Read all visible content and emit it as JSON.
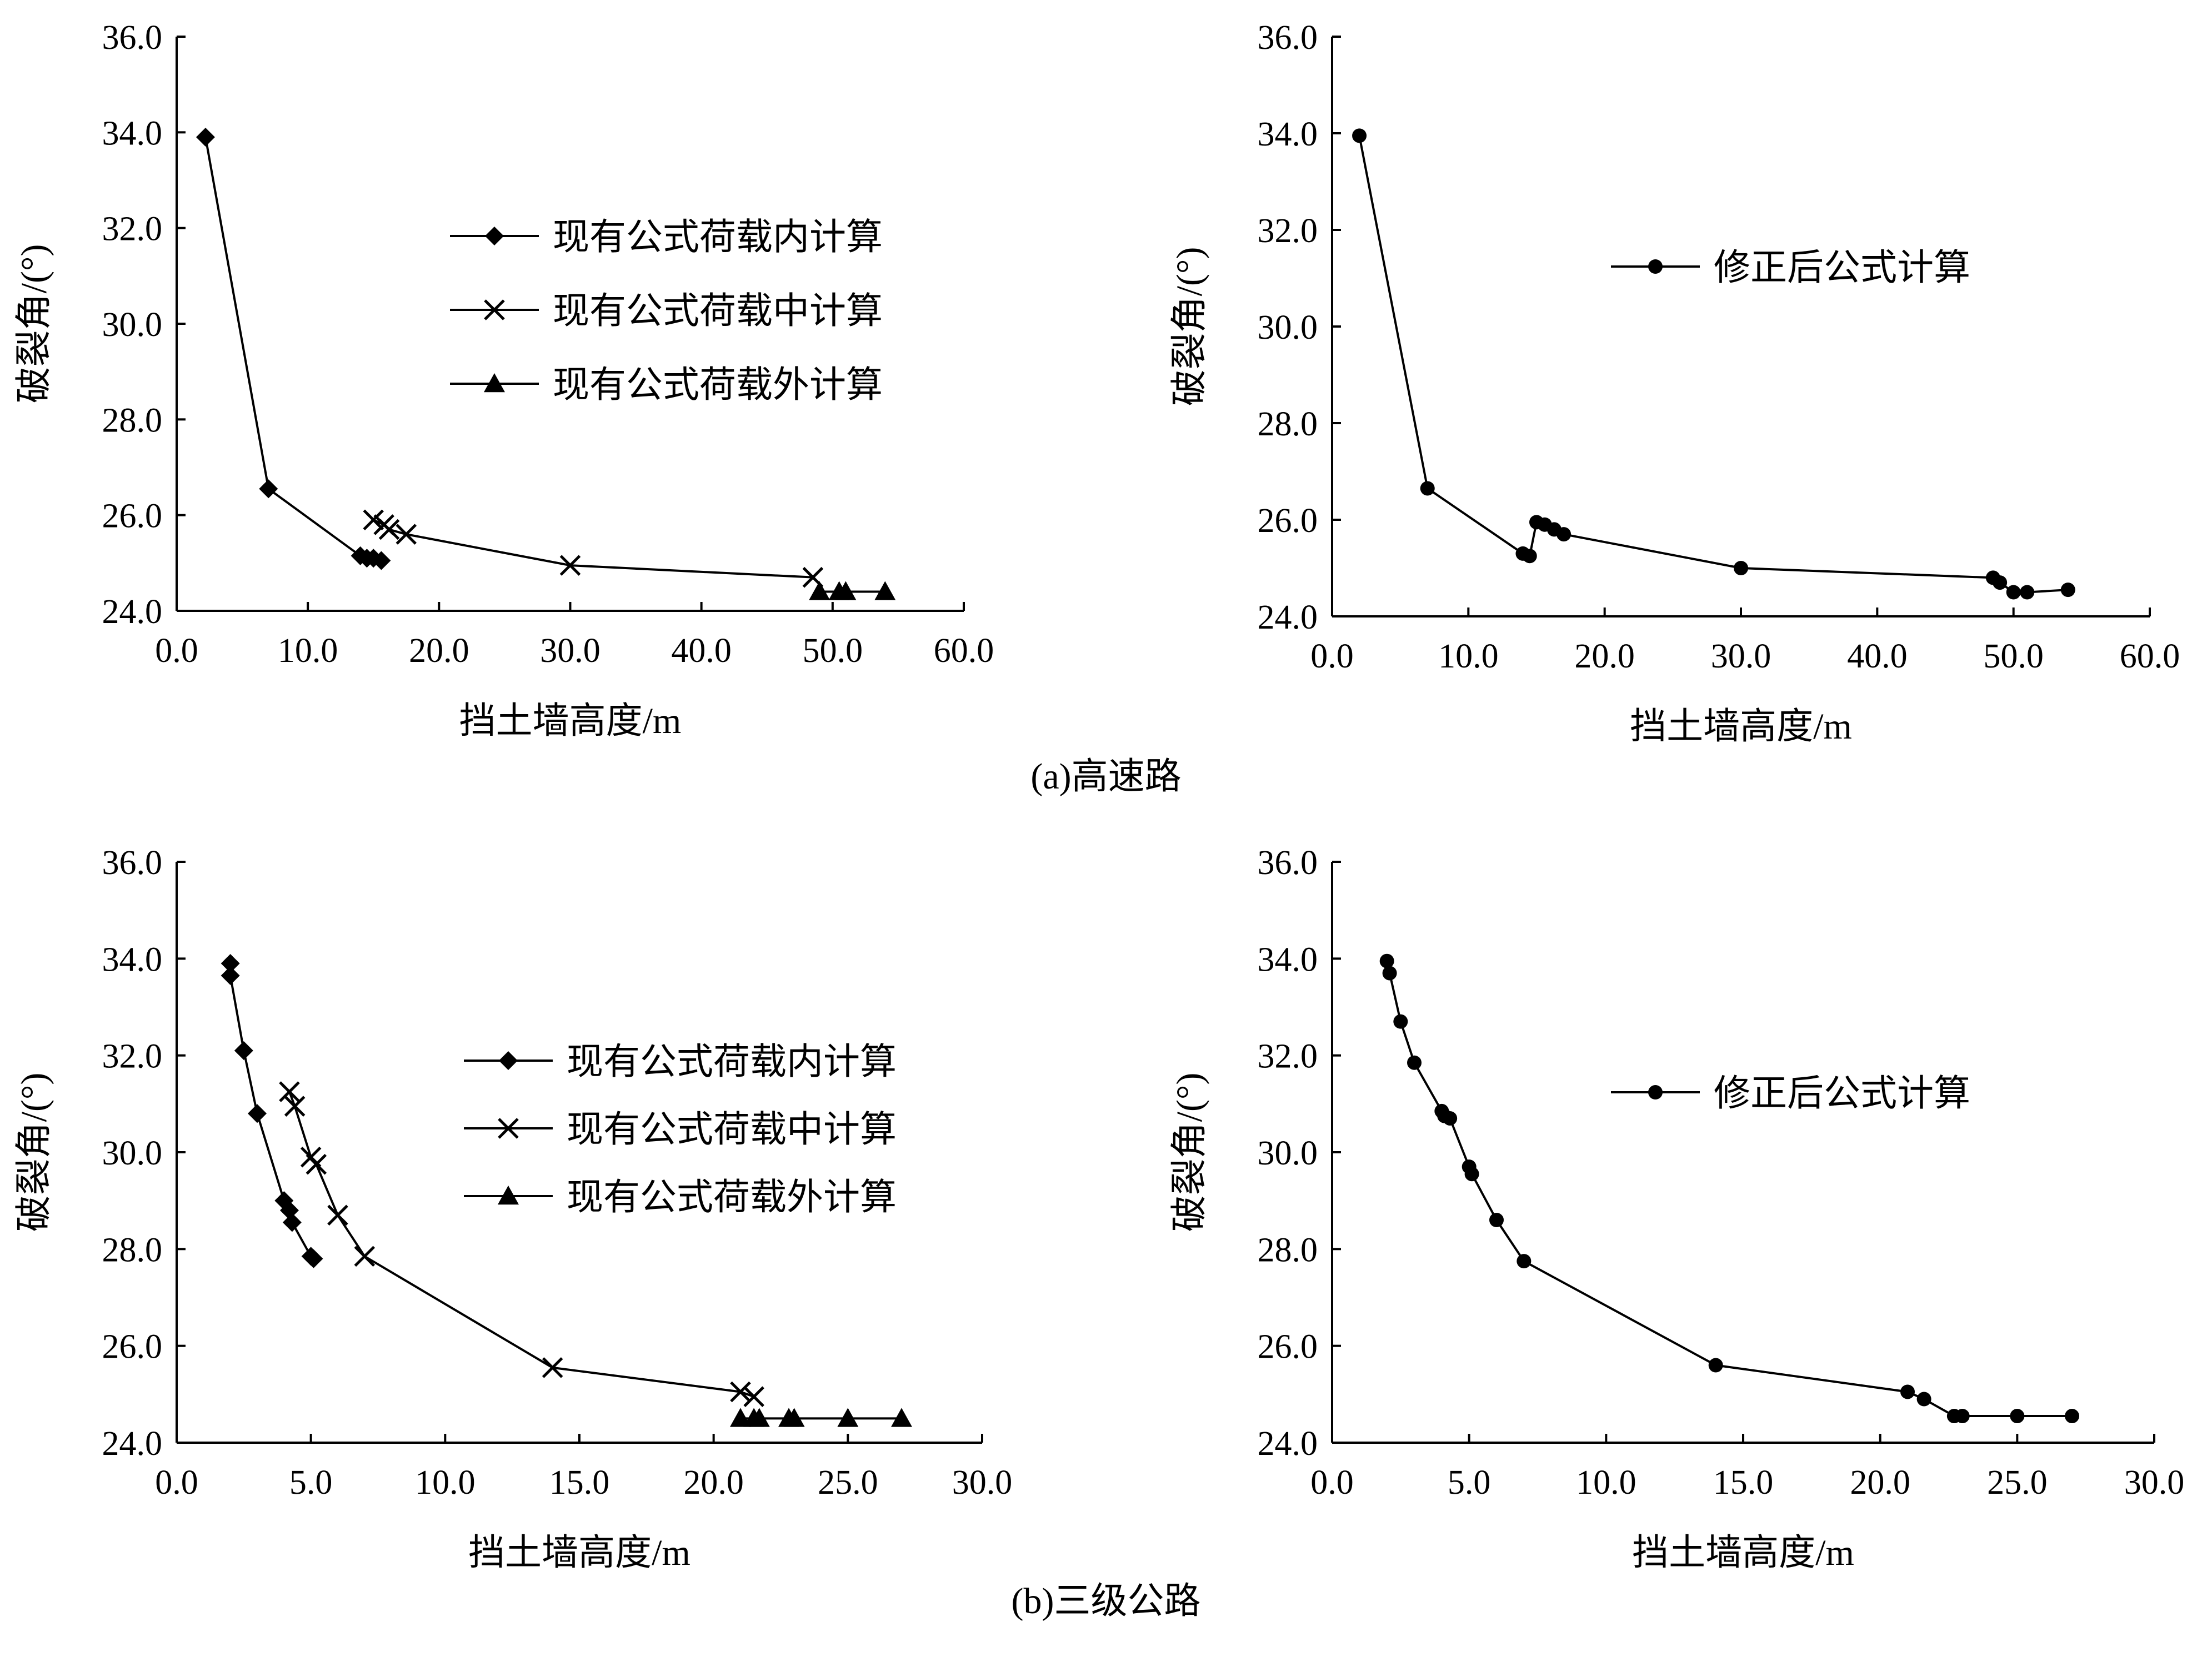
{
  "captions": {
    "top": "(a)高速路",
    "bottom": "(b)三级公路"
  },
  "style": {
    "line_color": "#000000",
    "background": "#ffffff"
  },
  "chart_data": [
    {
      "type": "line",
      "xlabel": "挡土墙高度/m",
      "ylabel": "破裂角/(°)",
      "xlim": [
        0,
        60
      ],
      "ylim": [
        24,
        36
      ],
      "xticks": [
        "0.0",
        "10.0",
        "20.0",
        "30.0",
        "40.0",
        "50.0",
        "60.0"
      ],
      "yticks": [
        "24.0",
        "26.0",
        "28.0",
        "30.0",
        "32.0",
        "34.0",
        "36.0"
      ],
      "legend_position": "upper-right",
      "series": [
        {
          "name": "现有公式荷载内计算",
          "marker": "diamond",
          "x": [
            2.2,
            7.0,
            14.0,
            14.5,
            15.0,
            15.6
          ],
          "y": [
            33.9,
            26.55,
            25.15,
            25.1,
            25.1,
            25.05
          ]
        },
        {
          "name": "现有公式荷载中计算",
          "marker": "x",
          "x": [
            15.0,
            15.8,
            16.2,
            17.5,
            30.0,
            48.5
          ],
          "y": [
            25.9,
            25.8,
            25.7,
            25.6,
            24.95,
            24.7
          ]
        },
        {
          "name": "现有公式荷载外计算",
          "marker": "triangle",
          "x": [
            49.0,
            50.5,
            51.0,
            54.0
          ],
          "y": [
            24.4,
            24.4,
            24.4,
            24.4
          ]
        }
      ]
    },
    {
      "type": "line",
      "xlabel": "挡土墙高度/m",
      "ylabel": "破裂角/(°)",
      "xlim": [
        0,
        60
      ],
      "ylim": [
        24,
        36
      ],
      "xticks": [
        "0.0",
        "10.0",
        "20.0",
        "30.0",
        "40.0",
        "50.0",
        "60.0"
      ],
      "yticks": [
        "24.0",
        "26.0",
        "28.0",
        "30.0",
        "32.0",
        "34.0",
        "36.0"
      ],
      "legend_position": "upper-right",
      "series": [
        {
          "name": "修正后公式计算",
          "marker": "circle",
          "x": [
            2.0,
            7.0,
            14.0,
            14.5,
            15.0,
            15.6,
            16.3,
            17.0,
            30.0,
            48.5,
            49.0,
            50.0,
            51.0,
            54.0
          ],
          "y": [
            33.95,
            26.65,
            25.3,
            25.25,
            25.95,
            25.9,
            25.8,
            25.7,
            25.0,
            24.8,
            24.7,
            24.5,
            24.5,
            24.55
          ]
        }
      ]
    },
    {
      "type": "line",
      "xlabel": "挡土墙高度/m",
      "ylabel": "破裂角/(°)",
      "xlim": [
        0,
        30
      ],
      "ylim": [
        24,
        36
      ],
      "xticks": [
        "0.0",
        "5.0",
        "10.0",
        "15.0",
        "20.0",
        "25.0",
        "30.0"
      ],
      "yticks": [
        "24.0",
        "26.0",
        "28.0",
        "30.0",
        "32.0",
        "34.0",
        "36.0"
      ],
      "legend_position": "upper-right",
      "series": [
        {
          "name": "现有公式荷载内计算",
          "marker": "diamond",
          "x": [
            2.0,
            2.0,
            2.5,
            3.0,
            4.0,
            4.2,
            4.3,
            5.0,
            5.1
          ],
          "y": [
            33.9,
            33.65,
            32.1,
            30.8,
            29.0,
            28.8,
            28.55,
            27.85,
            27.8
          ]
        },
        {
          "name": "现有公式荷载中计算",
          "marker": "x",
          "x": [
            4.2,
            4.4,
            5.0,
            5.2,
            6.0,
            7.0,
            14.0,
            21.0,
            21.5
          ],
          "y": [
            31.25,
            30.95,
            29.9,
            29.75,
            28.7,
            27.85,
            25.55,
            25.05,
            24.95
          ]
        },
        {
          "name": "现有公式荷载外计算",
          "marker": "triangle",
          "x": [
            21.0,
            21.5,
            21.7,
            22.8,
            23.0,
            25.0,
            27.0
          ],
          "y": [
            24.5,
            24.5,
            24.5,
            24.5,
            24.5,
            24.5,
            24.5
          ]
        }
      ]
    },
    {
      "type": "line",
      "xlabel": "挡土墙高度/m",
      "ylabel": "破裂角/(°)",
      "xlim": [
        0,
        30
      ],
      "ylim": [
        24,
        36
      ],
      "xticks": [
        "0.0",
        "5.0",
        "10.0",
        "15.0",
        "20.0",
        "25.0",
        "30.0"
      ],
      "yticks": [
        "24.0",
        "26.0",
        "28.0",
        "30.0",
        "32.0",
        "34.0",
        "36.0"
      ],
      "legend_position": "upper-right",
      "series": [
        {
          "name": "修正后公式计算",
          "marker": "circle",
          "x": [
            2.0,
            2.1,
            2.5,
            3.0,
            4.0,
            4.1,
            4.3,
            5.0,
            5.1,
            6.0,
            7.0,
            14.0,
            21.0,
            21.6,
            22.7,
            23.0,
            25.0,
            27.0
          ],
          "y": [
            33.95,
            33.7,
            32.7,
            31.85,
            30.85,
            30.75,
            30.7,
            29.7,
            29.55,
            28.6,
            27.75,
            25.6,
            25.05,
            24.9,
            24.55,
            24.55,
            24.55,
            24.55
          ]
        }
      ]
    }
  ]
}
